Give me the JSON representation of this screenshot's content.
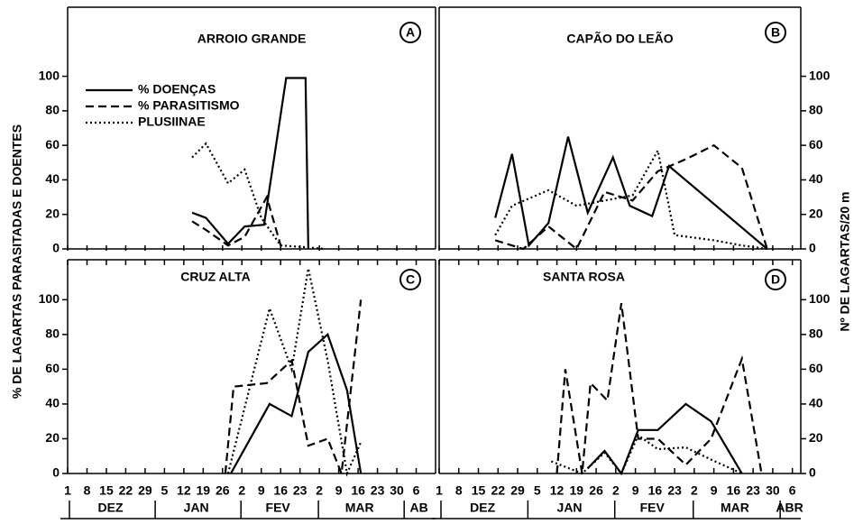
{
  "y_label": "% DE LAGARTAS PARASITADAS E DOENTES",
  "y2_label": "Nº DE LAGARTAS/20 m",
  "chart_data": [
    {
      "type": "line",
      "title": "ARROIO GRANDE",
      "label": "A",
      "side": "left",
      "row": "top",
      "xlim": [
        0,
        133
      ],
      "ylim": [
        0,
        140
      ],
      "yticks": [
        0,
        20,
        40,
        60,
        80,
        100
      ],
      "series": [
        {
          "name": "% DOENÇAS",
          "style": "solid",
          "color": "#000000",
          "x": [
            45,
            50,
            58,
            64,
            71,
            79,
            86,
            87
          ],
          "values": [
            21,
            18,
            3,
            13,
            14,
            99,
            99,
            0
          ]
        },
        {
          "name": "% PARASITISMO",
          "style": "dashed",
          "color": "#000000",
          "x": [
            45,
            50,
            58,
            64,
            72,
            77
          ],
          "values": [
            16,
            11,
            2,
            7,
            30,
            2
          ]
        },
        {
          "name": "PLUSIINAE",
          "style": "dotted",
          "color": "#000000",
          "x": [
            45,
            50,
            58,
            64,
            70,
            77,
            86,
            93
          ],
          "values": [
            53,
            61,
            38,
            46,
            18,
            2,
            1,
            0
          ]
        }
      ]
    },
    {
      "type": "line",
      "title": "CAPÃO DO LEÃO",
      "label": "B",
      "side": "right",
      "row": "top",
      "xlim": [
        0,
        129
      ],
      "ylim": [
        0,
        140
      ],
      "yticks": [
        0,
        20,
        40,
        60,
        80,
        100
      ],
      "series": [
        {
          "style": "solid",
          "color": "#000000",
          "x": [
            20,
            26,
            32,
            39,
            46,
            53,
            62,
            68,
            76,
            82,
            117
          ],
          "values": [
            18,
            55,
            2,
            15,
            65,
            21,
            53,
            25,
            19,
            48,
            0
          ]
        },
        {
          "style": "dashed",
          "color": "#000000",
          "x": [
            20,
            30,
            39,
            49,
            59,
            69,
            78,
            88,
            98,
            108,
            117
          ],
          "values": [
            5,
            0,
            13,
            0,
            33,
            28,
            45,
            52,
            60,
            47,
            0
          ]
        },
        {
          "style": "dotted",
          "color": "#000000",
          "x": [
            20,
            26,
            39,
            49,
            59,
            69,
            78,
            84,
            98,
            108,
            117
          ],
          "values": [
            8,
            25,
            34,
            25,
            28,
            31,
            57,
            8,
            5,
            2,
            0
          ]
        }
      ]
    },
    {
      "type": "line",
      "title": "CRUZ ALTA",
      "label": "C",
      "side": "left",
      "row": "bottom",
      "xlim": [
        0,
        133
      ],
      "ylim": [
        0,
        123
      ],
      "yticks": [
        0,
        20,
        40,
        60,
        80,
        100
      ],
      "xticks": [
        {
          "value": 0,
          "label": "1"
        },
        {
          "value": 7,
          "label": "8"
        },
        {
          "value": 14,
          "label": "15"
        },
        {
          "value": 21,
          "label": "22"
        },
        {
          "value": 28,
          "label": "29"
        },
        {
          "value": 35,
          "label": "5"
        },
        {
          "value": 42,
          "label": "12"
        },
        {
          "value": 49,
          "label": "19"
        },
        {
          "value": 56,
          "label": "26"
        },
        {
          "value": 63,
          "label": "2"
        },
        {
          "value": 70,
          "label": "9"
        },
        {
          "value": 77,
          "label": "16"
        },
        {
          "value": 84,
          "label": "23"
        },
        {
          "value": 91,
          "label": "2"
        },
        {
          "value": 98,
          "label": "9"
        },
        {
          "value": 105,
          "label": "16"
        },
        {
          "value": 112,
          "label": "23"
        },
        {
          "value": 119,
          "label": "30"
        },
        {
          "value": 126,
          "label": "6"
        }
      ],
      "months": [
        "DEZ",
        "JAN",
        "FEV",
        "MAR",
        "AB"
      ],
      "series": [
        {
          "style": "solid",
          "color": "#000000",
          "x": [
            59,
            73,
            81,
            87,
            94,
            101,
            106
          ],
          "values": [
            0,
            40,
            33,
            70,
            80,
            48,
            0
          ]
        },
        {
          "style": "dashed",
          "color": "#000000",
          "x": [
            57,
            60,
            72,
            81,
            87,
            94,
            99,
            106
          ],
          "values": [
            0,
            50,
            52,
            65,
            16,
            20,
            0,
            100
          ]
        },
        {
          "style": "dotted",
          "color": "#000000",
          "x": [
            58,
            73,
            81,
            87,
            94,
            101,
            106
          ],
          "values": [
            0,
            95,
            60,
            118,
            65,
            0,
            18
          ]
        }
      ]
    },
    {
      "type": "line",
      "title": "SANTA ROSA",
      "label": "D",
      "side": "right",
      "row": "bottom",
      "xlim": [
        0,
        129
      ],
      "ylim": [
        0,
        123
      ],
      "yticks": [
        0,
        20,
        40,
        60,
        80,
        100
      ],
      "xticks": [
        {
          "value": 0,
          "label": "1"
        },
        {
          "value": 7,
          "label": "8"
        },
        {
          "value": 14,
          "label": "15"
        },
        {
          "value": 21,
          "label": "22"
        },
        {
          "value": 28,
          "label": "29"
        },
        {
          "value": 35,
          "label": "5"
        },
        {
          "value": 42,
          "label": "12"
        },
        {
          "value": 49,
          "label": "19"
        },
        {
          "value": 56,
          "label": "26"
        },
        {
          "value": 63,
          "label": "2"
        },
        {
          "value": 70,
          "label": "9"
        },
        {
          "value": 77,
          "label": "16"
        },
        {
          "value": 84,
          "label": "23"
        },
        {
          "value": 91,
          "label": "2"
        },
        {
          "value": 98,
          "label": "9"
        },
        {
          "value": 105,
          "label": "16"
        },
        {
          "value": 112,
          "label": "23"
        },
        {
          "value": 119,
          "label": "30"
        },
        {
          "value": 126,
          "label": "6"
        }
      ],
      "months": [
        "DEZ",
        "JAN",
        "FEV",
        "MAR",
        "ABR"
      ],
      "series": [
        {
          "style": "solid",
          "color": "#000000",
          "x": [
            53,
            59,
            65,
            71,
            78,
            88,
            97,
            108
          ],
          "values": [
            3,
            13,
            0,
            25,
            25,
            40,
            30,
            0
          ]
        },
        {
          "style": "dashed",
          "color": "#000000",
          "x": [
            42,
            45,
            51,
            54,
            60,
            65,
            71,
            78,
            88,
            97,
            108,
            115
          ],
          "values": [
            0,
            60,
            0,
            52,
            42,
            98,
            20,
            20,
            5,
            20,
            66,
            0
          ]
        },
        {
          "style": "dotted",
          "color": "#000000",
          "x": [
            40,
            51,
            59,
            65,
            71,
            78,
            88,
            97,
            108
          ],
          "values": [
            7,
            0,
            12,
            0,
            22,
            14,
            15,
            8,
            0
          ]
        }
      ]
    }
  ]
}
